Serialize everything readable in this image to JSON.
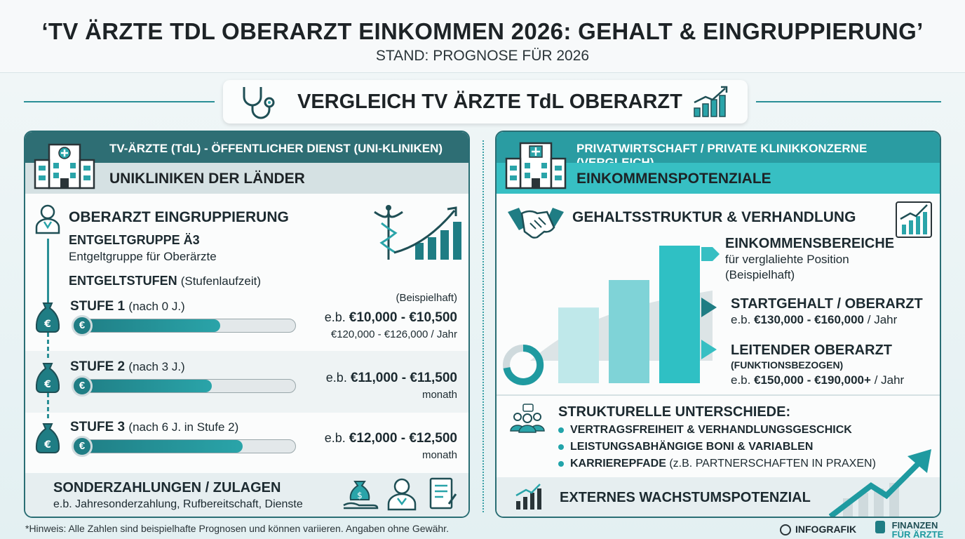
{
  "header": {
    "title": "‘TV ÄRZTE TDL OBERARZT EINKOMMEN 2026: GEHALT & EINGRUPPIERUNG’",
    "subtitle": "STAND: PROGNOSE FÜR 2026"
  },
  "banner": {
    "text": "VERGLEICH TV ÄRZTE TdL OBERARZT"
  },
  "left": {
    "header1": "TV-ÄRZTE (TdL) - ÖFFENTLICHER DIENST (UNI-KLINIKEN)",
    "header2": "UNIKLINIKEN DER LÄNDER",
    "section_title": "OBERARZT EINGRUPPIERUNG",
    "group_title": "ENTGELTGRUPPE Ä3",
    "group_desc": "Entgeltgruppe für Oberärzte",
    "stufen_title": "ENTGELTSTUFEN",
    "stufen_note": "(Stufenlaufzeit)",
    "example_note": "(Beispielhaft)",
    "stufen": [
      {
        "label": "STUFE 1",
        "detail": "(nach 0 J.)",
        "range": "€10,000 - €10,500",
        "prefix": "e.b.",
        "sub": "€120,000 - €126,000 / Jahr",
        "fill": 0.66
      },
      {
        "label": "STUFE 2",
        "detail": "(nach 3 J.)",
        "range": "€11,000 - €11,500",
        "prefix": "e.b.",
        "sub": "monath",
        "fill": 0.62
      },
      {
        "label": "STUFE 3",
        "detail": "(nach 6 J. in Stufe 2)",
        "range": "€12,000 - €12,500",
        "prefix": "e.b.",
        "sub": "monath",
        "fill": 0.76
      }
    ],
    "coin_symbol": "€",
    "sonder_title": "SONDERZAHLUNGEN / ZULAGEN",
    "sonder_desc": "e.b. Jahresonderzahlung, Rufbereitschaft, Dienste"
  },
  "right": {
    "header1": "PRIVATWIRTSCHAFT / PRIVATE KLINIKKONZERNE (VERGLEICH)",
    "header2": "EINKOMMENSPOTENZIALE",
    "section_title": "GEHALTSSTRUKTUR & VERHANDLUNG",
    "ranges_title": "EINKOMMENSBEREICHE",
    "ranges_desc1": "für verglaliehte Position",
    "ranges_desc2": "(Beispielhaft)",
    "start_title": "STARTGEHALT / OBERARZT",
    "start_prefix": "e.b.",
    "start_range": "€130,000 - €160,000",
    "start_suffix": "/ Jahr",
    "lead_title": "LEITENDER OBERARZT",
    "lead_sub": "(FUNKTIONSBEZOGEN)",
    "lead_prefix": "e.b.",
    "lead_range": "€150,000 - €190,000+",
    "lead_suffix": "/ Jahr",
    "diff_title": "STRUKTURELLE UNTERSCHIEDE:",
    "diff_items": [
      {
        "bold": "VERTRAGSFREIHEIT & VERHANDLUNGSGESCHICK",
        "rest": ""
      },
      {
        "bold": "LEISTUNGSABHÄNGIGE BONI & VARIABLEN",
        "rest": ""
      },
      {
        "bold": "KARRIEREPFADE",
        "rest": " (z.B. PARTNERSCHAFTEN IN PRAXEN)"
      }
    ],
    "growth": "EXTERNES WACHSTUMSPOTENZIAL",
    "bar_levels": [
      0.55,
      0.75,
      1.0
    ]
  },
  "footer": {
    "note": "*Hinweis: Alle Zahlen sind beispielhafte Prognosen und können variieren. Angaben ohne Gewähr.",
    "brand1": "INFOGRAFIK",
    "brand2a": "FINANZEN",
    "brand2b": "FÜR ÄRZTE"
  },
  "colors": {
    "teal_dark": "#2e6e74",
    "teal": "#2a9ca2",
    "teal_light": "#37bfc3",
    "accent": "#1f7d84"
  },
  "icons": [
    "stethoscope-icon",
    "growth-chart-icon",
    "hospital-icon",
    "doctor-icon",
    "caduceus-icon",
    "money-bag-icon",
    "handshake-icon",
    "team-icon",
    "document-icon",
    "donut-icon"
  ]
}
